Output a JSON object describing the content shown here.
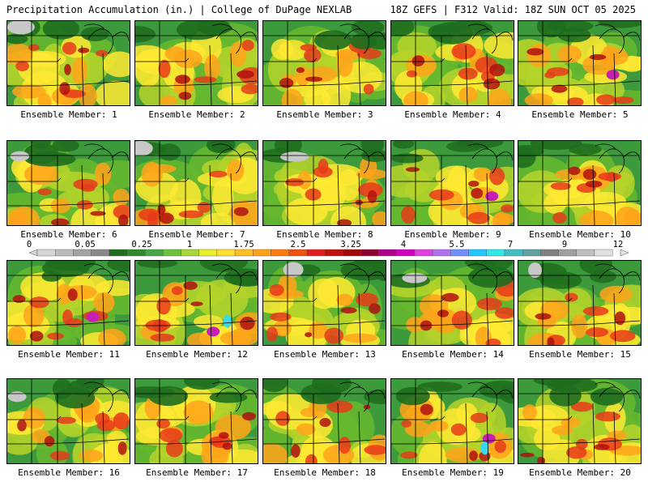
{
  "header": {
    "left": "Precipitation Accumulation (in.) | College of DuPage NEXLAB",
    "right": "18Z GEFS | F312 Valid: 18Z SUN OCT 05 2025"
  },
  "panels": [
    {
      "label": "Ensemble Member: 1"
    },
    {
      "label": "Ensemble Member: 2"
    },
    {
      "label": "Ensemble Member: 3"
    },
    {
      "label": "Ensemble Member: 4"
    },
    {
      "label": "Ensemble Member: 5"
    },
    {
      "label": "Ensemble Member: 6"
    },
    {
      "label": "Ensemble Member: 7"
    },
    {
      "label": "Ensemble Member: 8"
    },
    {
      "label": "Ensemble Member: 9"
    },
    {
      "label": "Ensemble Member: 10"
    },
    {
      "label": "Ensemble Member: 11"
    },
    {
      "label": "Ensemble Member: 12"
    },
    {
      "label": "Ensemble Member: 13"
    },
    {
      "label": "Ensemble Member: 14"
    },
    {
      "label": "Ensemble Member: 15"
    },
    {
      "label": "Ensemble Member: 16"
    },
    {
      "label": "Ensemble Member: 17"
    },
    {
      "label": "Ensemble Member: 18"
    },
    {
      "label": "Ensemble Member: 19"
    },
    {
      "label": "Ensemble Member: 20"
    }
  ],
  "colorbar": {
    "ticks": [
      "0",
      "0.05",
      "0.25",
      "1",
      "1.75",
      "2.5",
      "3.25",
      "4",
      "5.5",
      "7",
      "9",
      "12"
    ],
    "colors": [
      "#d6d6d6",
      "#bdbdbd",
      "#a3a3a3",
      "#8a8a8a",
      "#1e6e1e",
      "#2f8a2f",
      "#45a845",
      "#6cc23a",
      "#a8d83a",
      "#e8f02a",
      "#ffe030",
      "#ffc020",
      "#ffa018",
      "#ff7a10",
      "#f05010",
      "#e02020",
      "#c01010",
      "#a00808",
      "#900030",
      "#b0008a",
      "#d000c0",
      "#e040e0",
      "#b070f0",
      "#7090ff",
      "#20c8ff",
      "#30e8e8",
      "#40c0c0",
      "#60a0a0",
      "#808080",
      "#a0a0a0",
      "#c0c0c0",
      "#e0e0e0"
    ]
  },
  "map_palette": {
    "green_dark": "#1f6e1f",
    "green_mid": "#3c9a3c",
    "green_light": "#66b82e",
    "yellow_green": "#b5d42a",
    "yellow": "#ffe933",
    "orange": "#ffa31a",
    "red": "#e83a1a",
    "dark_red": "#b01010",
    "magenta": "#c81eb4",
    "cyan": "#3ad8f0",
    "gray": "#c8c8c8"
  }
}
